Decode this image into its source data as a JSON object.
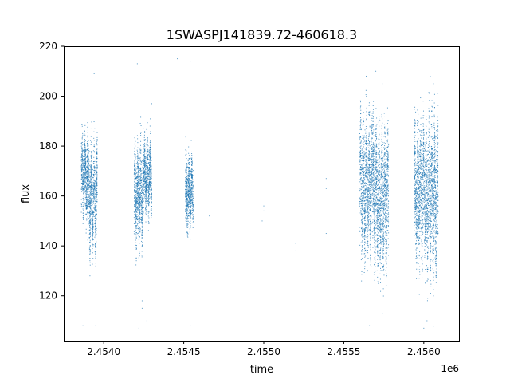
{
  "chart_data": {
    "type": "scatter",
    "title": "1SWASPJ141839.72-460618.3",
    "xlabel": "time",
    "ylabel": "flux",
    "x_offset_label": "1e6",
    "xlim": [
      2453750,
      2456220
    ],
    "ylim": [
      102,
      220
    ],
    "x_ticks": [
      2454000,
      2454500,
      2455000,
      2455500,
      2456000
    ],
    "x_tick_labels": [
      "2.4540",
      "2.4545",
      "2.4550",
      "2.4555",
      "2.4560"
    ],
    "y_ticks": [
      120,
      140,
      160,
      180,
      200,
      220
    ],
    "y_tick_labels": [
      "120",
      "140",
      "160",
      "180",
      "200",
      "220"
    ],
    "grid": false,
    "marker_color": "#1f77b4",
    "series": [
      {
        "segments": [
          {
            "x": [
              2453860,
              2453900
            ],
            "center": 168,
            "spread": 20,
            "amp": 6
          },
          {
            "x": [
              2453900,
              2453960
            ],
            "center": 160,
            "spread": 24,
            "amp": 10
          },
          {
            "x": [
              2454190,
              2454250
            ],
            "center": 160,
            "spread": 24,
            "amp": 8
          },
          {
            "x": [
              2454250,
              2454300
            ],
            "center": 168,
            "spread": 18,
            "amp": 6
          },
          {
            "x": [
              2454510,
              2454560
            ],
            "center": 161,
            "spread": 18,
            "amp": 5
          },
          {
            "x": [
              2455600,
              2455680
            ],
            "center": 164,
            "spread": 34,
            "amp": 12
          },
          {
            "x": [
              2455680,
              2455780
            ],
            "center": 160,
            "spread": 34,
            "amp": 12
          },
          {
            "x": [
              2455940,
              2456010
            ],
            "center": 162,
            "spread": 34,
            "amp": 10
          },
          {
            "x": [
              2456010,
              2456090
            ],
            "center": 160,
            "spread": 38,
            "amp": 12
          }
        ],
        "isolated_points": [
          [
            2454660,
            152
          ],
          [
            2454990,
            150
          ],
          [
            2455000,
            154
          ],
          [
            2455000,
            156
          ],
          [
            2455200,
            141
          ],
          [
            2455200,
            138
          ],
          [
            2455390,
            145
          ],
          [
            2455390,
            163
          ],
          [
            2455390,
            167
          ],
          [
            2453870,
            108
          ],
          [
            2453950,
            108
          ],
          [
            2454220,
            107
          ],
          [
            2454270,
            110
          ],
          [
            2454540,
            108
          ],
          [
            2455660,
            108
          ],
          [
            2456000,
            107
          ],
          [
            2453940,
            209
          ],
          [
            2454210,
            213
          ],
          [
            2454300,
            197
          ],
          [
            2454460,
            215
          ],
          [
            2454540,
            214
          ],
          [
            2455620,
            214
          ],
          [
            2455700,
            210
          ],
          [
            2455740,
            205
          ],
          [
            2456040,
            208
          ],
          [
            2456060,
            205
          ],
          [
            2454240,
            118
          ],
          [
            2454240,
            115
          ],
          [
            2455620,
            115
          ],
          [
            2455740,
            113
          ],
          [
            2456020,
            110
          ]
        ]
      }
    ]
  }
}
